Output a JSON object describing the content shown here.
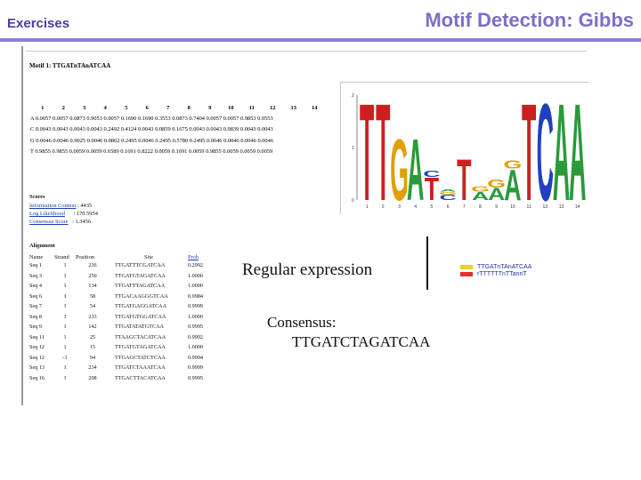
{
  "header": {
    "left": "Exercises",
    "title": "Motif Detection: Gibbs"
  },
  "motif": {
    "title": "Motif 1: TTGATnTAnATCAA",
    "positions": [
      "1",
      "2",
      "3",
      "4",
      "5",
      "6",
      "7",
      "8",
      "9",
      "10",
      "11",
      "12",
      "13",
      "14"
    ],
    "rows": [
      "A 0.0057 0.0057 0.0873 0.9053 0.0057 0.1690 0.1690 0.3553 0.0873 0.7404 0.0057 0.0057 0.9853 0.9553",
      "C 0.0043 0.0043 0.0043 0.0043 0.2492 0.4124 0.0043 0.0859 0.1675 0.0043 0.0043 0.9839 0.0043 0.0043",
      "G 0.0046 0.0046 0.9025 0.0046 0.0862 0.2495 0.0046 0.2495 0.5780 0.2495 0.0046 0.0046 0.0046 0.0046",
      "T 0.9855 0.9855 0.0059 0.0059 0.6589 0.1691 0.8222 0.0059 0.1691 0.0059 0.9855 0.0059 0.0059 0.0059"
    ],
    "logo": {
      "y_ticks": [
        "2",
        "1",
        "0"
      ],
      "x_ticks": [
        "1",
        "2",
        "3",
        "4",
        "5",
        "6",
        "7",
        "8",
        "9",
        "10",
        "11",
        "12",
        "13",
        "14"
      ],
      "columns": [
        [
          {
            "letter": "T",
            "color": "#cc2020",
            "h": 0.95
          }
        ],
        [
          {
            "letter": "T",
            "color": "#cc2020",
            "h": 0.95
          }
        ],
        [
          {
            "letter": "G",
            "color": "#e0a000",
            "h": 0.6
          }
        ],
        [
          {
            "letter": "A",
            "color": "#2a9a3a",
            "h": 0.6
          }
        ],
        [
          {
            "letter": "T",
            "color": "#cc2020",
            "h": 0.22
          },
          {
            "letter": "C",
            "color": "#2040c0",
            "h": 0.06
          }
        ],
        [
          {
            "letter": "C",
            "color": "#2040c0",
            "h": 0.05
          },
          {
            "letter": "G",
            "color": "#e0a000",
            "h": 0.03
          },
          {
            "letter": "A",
            "color": "#2a9a3a",
            "h": 0.02
          }
        ],
        [
          {
            "letter": "T",
            "color": "#cc2020",
            "h": 0.4
          }
        ],
        [
          {
            "letter": "A",
            "color": "#2a9a3a",
            "h": 0.08
          },
          {
            "letter": "G",
            "color": "#e0a000",
            "h": 0.05
          }
        ],
        [
          {
            "letter": "A",
            "color": "#2a9a3a",
            "h": 0.12
          },
          {
            "letter": "G",
            "color": "#e0a000",
            "h": 0.08
          }
        ],
        [
          {
            "letter": "A",
            "color": "#2a9a3a",
            "h": 0.3
          },
          {
            "letter": "G",
            "color": "#e0a000",
            "h": 0.08
          }
        ],
        [
          {
            "letter": "T",
            "color": "#cc2020",
            "h": 0.95
          }
        ],
        [
          {
            "letter": "C",
            "color": "#2040c0",
            "h": 0.95
          }
        ],
        [
          {
            "letter": "A",
            "color": "#2a9a3a",
            "h": 0.95
          }
        ],
        [
          {
            "letter": "A",
            "color": "#2a9a3a",
            "h": 0.95
          }
        ]
      ]
    }
  },
  "scores": {
    "heading": "Scores",
    "items": [
      {
        "label": "Information Content",
        "value": ": 4435"
      },
      {
        "label": "Log Likelihood",
        "value": ": 170.5954"
      },
      {
        "label": "Consensus Score",
        "value": ": 1.3456"
      }
    ]
  },
  "alignment": {
    "heading": "Alignment",
    "columns": [
      "Name",
      "Strand",
      "Position",
      "Site",
      "Prob"
    ],
    "rows": [
      [
        "Seq 1",
        "1",
        "236",
        "TTGATTTCGATCAA",
        "0.2992"
      ],
      [
        "Seq 3",
        "1",
        "250",
        "TTGATGTAGATCAA",
        "1.0000"
      ],
      [
        "Seq 4",
        "1",
        "134",
        "TTGATTTAGATCAA",
        "1.0000"
      ],
      [
        "Seq 6",
        "1",
        "58",
        "TTGACAAGGGTCAA",
        "0.9984"
      ],
      [
        "Seq 7",
        "1",
        "54",
        "TTGATGAGGATCAA",
        "0.9999"
      ],
      [
        "Seq 8",
        "1",
        "233",
        "TTGATGTGGATCAA",
        "1.0000"
      ],
      [
        "Seq 9",
        "1",
        "142",
        "TTGATATATGTCAA",
        "0.9995"
      ],
      [
        "Seq 11",
        "1",
        "25",
        "TTAAGCTACATCAA",
        "0.9992"
      ],
      [
        "Seq 12",
        "1",
        "15",
        "TTGATGTAGATCAA",
        "1.0000"
      ],
      [
        "Seq 12",
        "-1",
        "94",
        "TTGAGCTATCTCAA",
        "0.9994"
      ],
      [
        "Seq 13",
        "1",
        "234",
        "TTGATCTAAATCAA",
        "0.9999"
      ],
      [
        "Seq 16",
        "1",
        "208",
        "TTGACTTACATCAA",
        "0.9995"
      ]
    ]
  },
  "regex": {
    "label": "Regular expression",
    "entries": [
      {
        "text": "TTGATnTAnATCAA",
        "color": "#f0d020"
      },
      {
        "text": "rTTTTTTnTTannT",
        "color": "#e03030"
      }
    ]
  },
  "consensus": {
    "label": "Consensus:",
    "value": "TTGATCTAGATCAA"
  }
}
